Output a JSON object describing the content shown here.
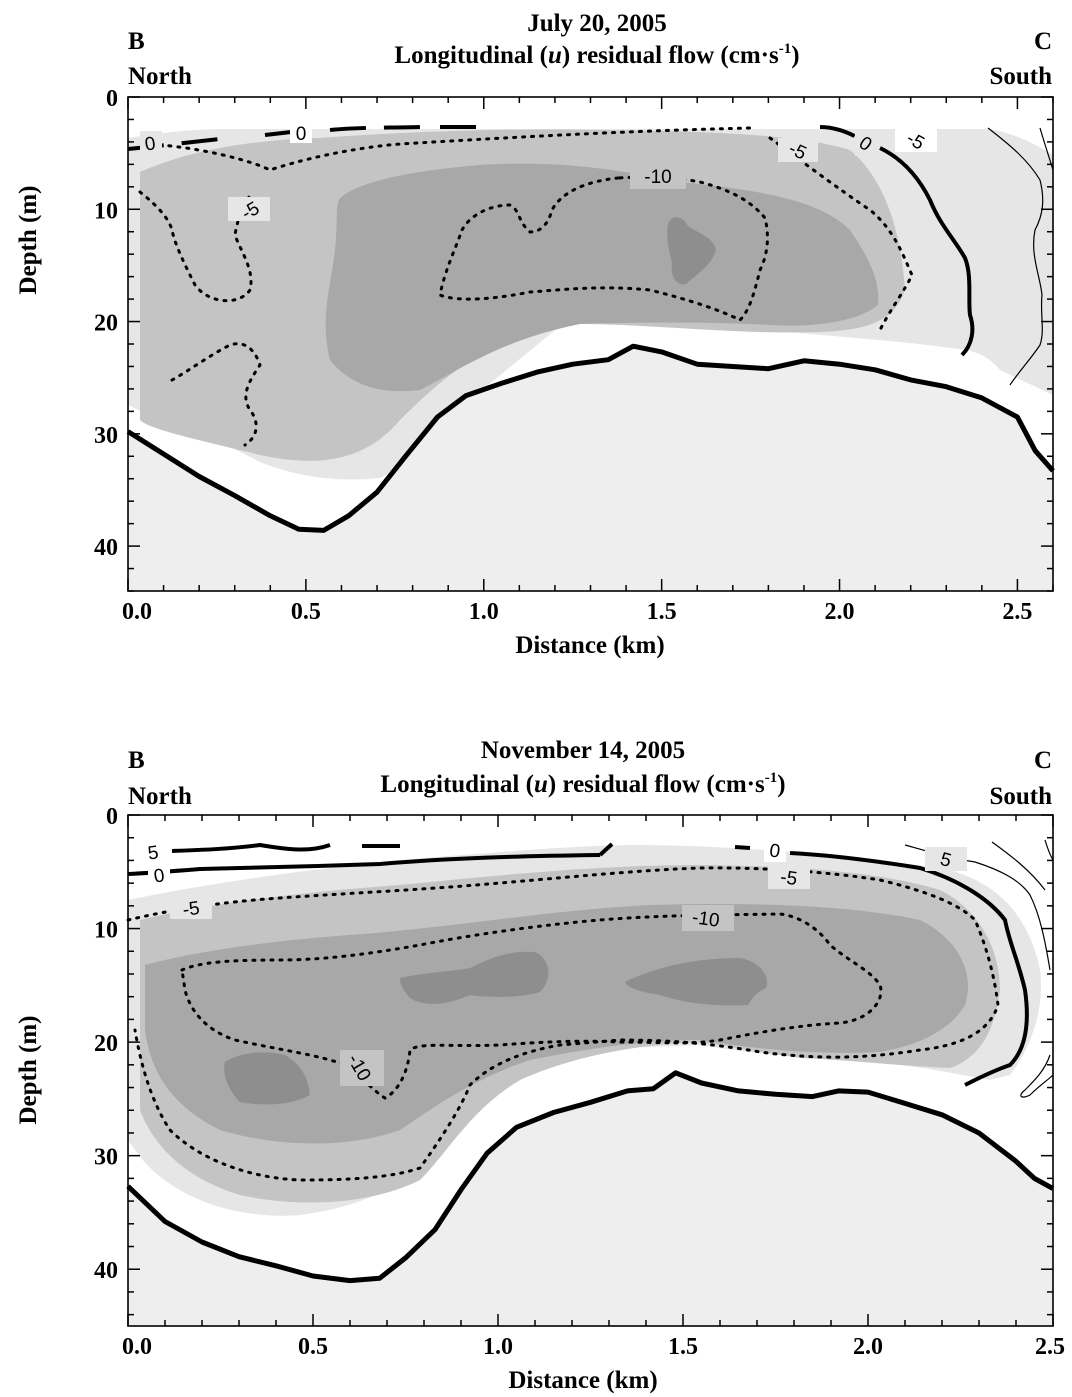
{
  "chart_data": [
    {
      "type": "contour",
      "date": "July 20, 2005",
      "title": "Longitudinal (u) residual flow (cm·s-1)",
      "title_prefix": "Longitudinal (",
      "title_var": "u",
      "title_suffix": ") residual flow (cm·s",
      "title_exp": "-1",
      "title_close": ")",
      "left_station": "B",
      "left_dir": "North",
      "right_station": "C",
      "right_dir": "South",
      "xlabel": "Distance (km)",
      "ylabel": "Depth (m)",
      "xlim": [
        0.0,
        2.6
      ],
      "ylim": [
        44,
        0
      ],
      "xticks": [
        0.0,
        0.5,
        1.0,
        1.5,
        2.0,
        2.5
      ],
      "xtick_labels": [
        "0.0",
        "0.5",
        "1.0",
        "1.5",
        "2.0",
        "2.5"
      ],
      "yticks": [
        0,
        10,
        20,
        30,
        40
      ],
      "ytick_labels": [
        "0",
        "10",
        "20",
        "30",
        "40"
      ],
      "fill_levels": [
        {
          "min": -5,
          "max": 0,
          "color": "#e6e6e6"
        },
        {
          "min": -10,
          "max": -5,
          "color": "#c4c4c4"
        },
        {
          "min": -15,
          "max": -10,
          "color": "#a8a8a8"
        },
        {
          "min": -20,
          "max": -15,
          "color": "#8e8e8e"
        }
      ],
      "bottom": [
        [
          0.0,
          29.8
        ],
        [
          0.1,
          31.8
        ],
        [
          0.2,
          33.8
        ],
        [
          0.3,
          35.5
        ],
        [
          0.4,
          37.3
        ],
        [
          0.48,
          38.5
        ],
        [
          0.55,
          38.6
        ],
        [
          0.62,
          37.3
        ],
        [
          0.7,
          35.2
        ],
        [
          0.78,
          32.0
        ],
        [
          0.87,
          28.5
        ],
        [
          0.95,
          26.6
        ],
        [
          1.05,
          25.5
        ],
        [
          1.15,
          24.5
        ],
        [
          1.25,
          23.8
        ],
        [
          1.35,
          23.4
        ],
        [
          1.42,
          22.2
        ],
        [
          1.5,
          22.7
        ],
        [
          1.6,
          23.8
        ],
        [
          1.7,
          24.0
        ],
        [
          1.8,
          24.2
        ],
        [
          1.9,
          23.5
        ],
        [
          2.0,
          23.8
        ],
        [
          2.1,
          24.3
        ],
        [
          2.2,
          25.2
        ],
        [
          2.3,
          25.8
        ],
        [
          2.4,
          26.8
        ],
        [
          2.5,
          28.5
        ],
        [
          2.55,
          31.5
        ],
        [
          2.6,
          33.3
        ]
      ],
      "contour_labels": [
        "0",
        "0",
        "0",
        "-5",
        "-5",
        "-10",
        "-5"
      ]
    },
    {
      "type": "contour",
      "date": "November 14, 2005",
      "title": "Longitudinal (u) residual flow (cm·s-1)",
      "title_prefix": "Longitudinal (",
      "title_var": "u",
      "title_suffix": ") residual flow (cm·s",
      "title_exp": "-1",
      "title_close": ")",
      "left_station": "B",
      "left_dir": "North",
      "right_station": "C",
      "right_dir": "South",
      "xlabel": "Distance (km)",
      "ylabel": "Depth (m)",
      "xlim": [
        0.0,
        2.5
      ],
      "ylim": [
        45,
        0
      ],
      "xticks": [
        0.0,
        0.5,
        1.0,
        1.5,
        2.0,
        2.5
      ],
      "xtick_labels": [
        "0.0",
        "0.5",
        "1.0",
        "1.5",
        "2.0",
        "2.5"
      ],
      "yticks": [
        0,
        10,
        20,
        30,
        40
      ],
      "ytick_labels": [
        "0",
        "10",
        "20",
        "30",
        "40"
      ],
      "fill_levels": [
        {
          "min": -5,
          "max": 0,
          "color": "#e6e6e6"
        },
        {
          "min": -10,
          "max": -5,
          "color": "#c4c4c4"
        },
        {
          "min": -15,
          "max": -10,
          "color": "#a8a8a8"
        },
        {
          "min": -20,
          "max": -15,
          "color": "#8e8e8e"
        }
      ],
      "bottom": [
        [
          0.0,
          32.7
        ],
        [
          0.1,
          35.8
        ],
        [
          0.2,
          37.6
        ],
        [
          0.3,
          38.9
        ],
        [
          0.4,
          39.7
        ],
        [
          0.5,
          40.6
        ],
        [
          0.6,
          41.0
        ],
        [
          0.68,
          40.8
        ],
        [
          0.75,
          39.0
        ],
        [
          0.83,
          36.5
        ],
        [
          0.9,
          33.0
        ],
        [
          0.97,
          29.8
        ],
        [
          1.05,
          27.5
        ],
        [
          1.15,
          26.2
        ],
        [
          1.25,
          25.3
        ],
        [
          1.35,
          24.3
        ],
        [
          1.42,
          24.1
        ],
        [
          1.48,
          22.7
        ],
        [
          1.55,
          23.6
        ],
        [
          1.65,
          24.3
        ],
        [
          1.75,
          24.6
        ],
        [
          1.85,
          24.8
        ],
        [
          1.92,
          24.3
        ],
        [
          2.0,
          24.4
        ],
        [
          2.1,
          25.4
        ],
        [
          2.2,
          26.4
        ],
        [
          2.3,
          28.0
        ],
        [
          2.4,
          30.5
        ],
        [
          2.45,
          32.0
        ],
        [
          2.5,
          32.9
        ]
      ],
      "contour_labels": [
        "5",
        "0",
        "-5",
        "-10",
        "0",
        "-5",
        "5",
        "-10"
      ]
    }
  ]
}
